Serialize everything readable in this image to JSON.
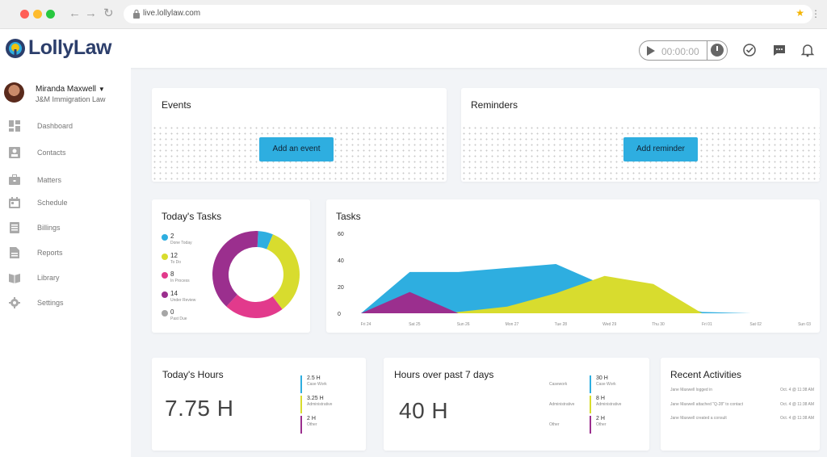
{
  "browser": {
    "url": "live.lollylaw.com"
  },
  "header": {
    "logo_text": "LollyLaw",
    "timer": "00:00:00",
    "icons": [
      "play-icon",
      "clock-icon",
      "check-circle-icon",
      "chat-icon",
      "bell-icon"
    ]
  },
  "sidebar": {
    "user_name": "Miranda Maxwell",
    "user_org": "J&M Immigration Law",
    "items": [
      {
        "label": "Dashboard",
        "icon": "dashboard-icon"
      },
      {
        "label": "Contacts",
        "icon": "contacts-icon"
      },
      {
        "label": "Matters",
        "icon": "briefcase-icon"
      },
      {
        "label": "Schedule",
        "icon": "calendar-icon"
      },
      {
        "label": "Billings",
        "icon": "billing-icon"
      },
      {
        "label": "Reports",
        "icon": "report-icon"
      },
      {
        "label": "Library",
        "icon": "book-icon"
      },
      {
        "label": "Settings",
        "icon": "gear-icon"
      }
    ]
  },
  "events": {
    "title": "Events",
    "button": "Add an event"
  },
  "reminders": {
    "title": "Reminders",
    "button": "Add reminder"
  },
  "todays_tasks": {
    "title": "Today's Tasks",
    "legend": [
      {
        "value": "2",
        "label": "Done Today",
        "color": "#2eaee0"
      },
      {
        "value": "12",
        "label": "To Do",
        "color": "#d8dc2e"
      },
      {
        "value": "8",
        "label": "In Process",
        "color": "#e23a8c"
      },
      {
        "value": "14",
        "label": "Under Review",
        "color": "#9b2f8e"
      },
      {
        "value": "0",
        "label": "Past Due",
        "color": "#a6a6a6"
      }
    ]
  },
  "tasks_chart": {
    "title": "Tasks"
  },
  "chart_data": [
    {
      "type": "pie",
      "donut": true,
      "categories": [
        "Done Today",
        "To Do",
        "In Process",
        "Under Review",
        "Past Due"
      ],
      "values": [
        2,
        12,
        8,
        14,
        0
      ],
      "colors": [
        "#2eaee0",
        "#d8dc2e",
        "#e23a8c",
        "#9b2f8e",
        "#a6a6a6"
      ]
    },
    {
      "type": "area",
      "title": "Tasks",
      "categories": [
        "Fri 24",
        "Sat 25",
        "Sun 26",
        "Mon 27",
        "Tue 28",
        "Wed 29",
        "Thu 30",
        "Fri 01",
        "Sat 02",
        "Sun 03"
      ],
      "ylim": [
        0,
        60
      ],
      "yticks": [
        0,
        20,
        40,
        60
      ],
      "grid": false,
      "series": [
        {
          "values": [
            0,
            31,
            31,
            34,
            37,
            21,
            10,
            1,
            0,
            0
          ],
          "color": "#2eaee0"
        },
        {
          "values": [
            0,
            0,
            1,
            5,
            15,
            28,
            22,
            0,
            0,
            0
          ],
          "color": "#d8dc2e"
        },
        {
          "values": [
            0,
            16,
            0,
            0,
            0,
            0,
            0,
            0,
            0,
            0
          ],
          "color": "#9b2f8e"
        }
      ]
    }
  ],
  "todays_hours": {
    "title": "Today's Hours",
    "total": "7.75 H",
    "breakdown": [
      {
        "value": "2.5 H",
        "label": "Case Work",
        "color": "#2eaee0"
      },
      {
        "value": "3.25 H",
        "label": "Administrative",
        "color": "#d8dc2e"
      },
      {
        "value": "2 H",
        "label": "Other",
        "color": "#9b2f8e"
      }
    ]
  },
  "hours_week": {
    "title": "Hours over past 7 days",
    "total": "40 H",
    "breakdown": [
      {
        "side_label": "Casework",
        "value": "30 H",
        "label": "Case Work",
        "color": "#2eaee0"
      },
      {
        "side_label": "Administrative",
        "value": "8 H",
        "label": "Administrative",
        "color": "#d8dc2e"
      },
      {
        "side_label": "Other",
        "value": "2 H",
        "label": "Other",
        "color": "#9b2f8e"
      }
    ]
  },
  "recent": {
    "title": "Recent Activities",
    "rows": [
      {
        "text": "Jane Maxwell logged in",
        "time": "Oct. 4 @ 11:38 AM"
      },
      {
        "text": "Jane Maxwell attached \"Q-28\" to contact",
        "time": "Oct. 4 @ 11:38 AM"
      },
      {
        "text": "Jane Maxwell created a consult",
        "time": "Oct. 4 @ 11:38 AM"
      }
    ]
  }
}
